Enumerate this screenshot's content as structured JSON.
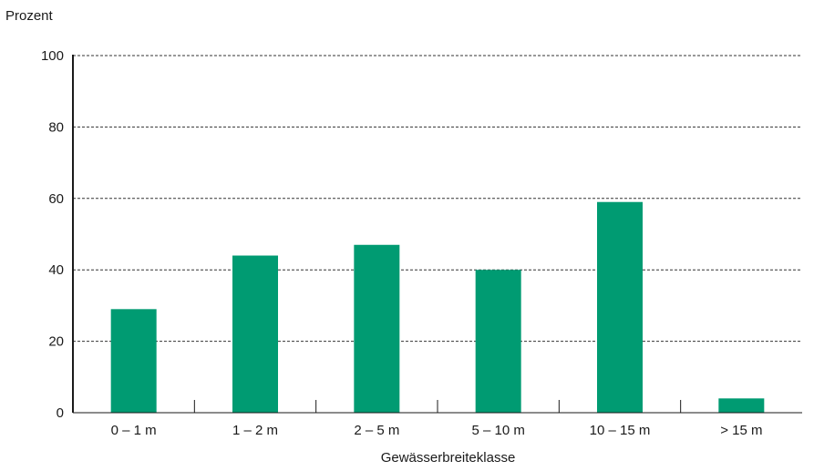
{
  "chart_data": {
    "type": "bar",
    "ylabel": "Prozent",
    "xlabel": "Gewässerbreiteklasse",
    "categories": [
      "0 – 1 m",
      "1 – 2 m",
      "2 – 5 m",
      "5 – 10 m",
      "10 – 15 m",
      "> 15 m"
    ],
    "values": [
      29,
      44,
      47,
      40,
      59,
      4
    ],
    "ylim": [
      0,
      100
    ],
    "yticks": [
      0,
      20,
      40,
      60,
      80,
      100
    ],
    "grid": true,
    "bar_color": "#009B72"
  }
}
